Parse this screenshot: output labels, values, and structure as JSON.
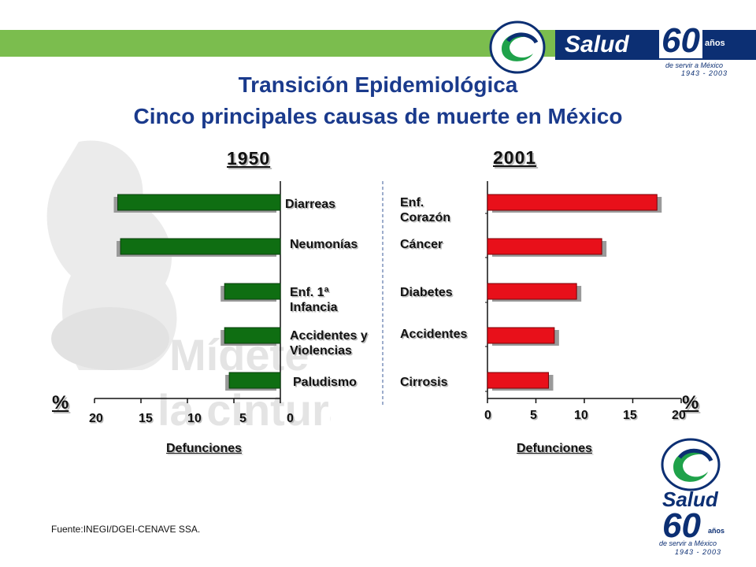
{
  "header": {
    "brand": "Salud",
    "anniversary_text": "60 años",
    "tagline": "de servir a México",
    "years": "1943 - 2003",
    "bar_color": "#7bbd4e"
  },
  "title": {
    "line1": "Transición Epidemiológica",
    "line2": "Cinco principales causas de muerte en México"
  },
  "watermark_text": "Mídete la cintura",
  "chart_data": [
    {
      "type": "bar",
      "orientation": "horizontal",
      "direction": "right-to-left",
      "title": "1950",
      "categories": [
        "Diarreas",
        "Neumonías",
        "Enf. 1ª Infancia",
        "Accidentes y Violencias",
        "Paludismo"
      ],
      "values": [
        17.5,
        17.2,
        6.0,
        6.0,
        5.5
      ],
      "xlabel": "Defunciones",
      "unit": "%",
      "xlim": [
        0,
        20
      ],
      "ticks": [
        "20",
        "15",
        "10",
        "5",
        "0"
      ],
      "color": "#0f6e12"
    },
    {
      "type": "bar",
      "orientation": "horizontal",
      "direction": "left-to-right",
      "title": "2001",
      "categories": [
        "Enf. Corazón",
        "Cáncer",
        "Diabetes",
        "Accidentes",
        "Cirrosis"
      ],
      "values": [
        17.5,
        11.8,
        9.2,
        6.9,
        6.3
      ],
      "xlabel": "Defunciones",
      "unit": "%",
      "xlim": [
        0,
        20
      ],
      "ticks": [
        "0",
        "5",
        "10",
        "15",
        "20"
      ],
      "color": "#e8101a"
    }
  ],
  "source": "Fuente:INEGI/DGEI-CENAVE  SSA.",
  "logo2": {
    "brand": "Salud",
    "anniversary": "60",
    "anios": "años",
    "tagline": "de servir a México",
    "years": "1943 - 2003"
  }
}
